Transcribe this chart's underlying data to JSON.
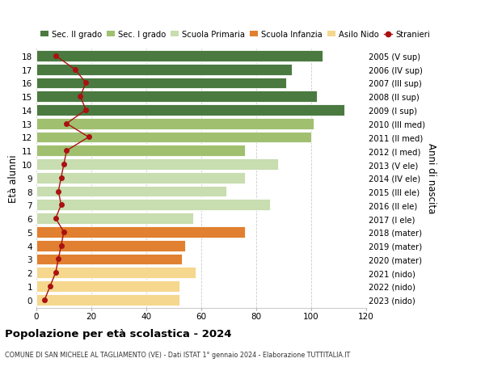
{
  "ages": [
    0,
    1,
    2,
    3,
    4,
    5,
    6,
    7,
    8,
    9,
    10,
    11,
    12,
    13,
    14,
    15,
    16,
    17,
    18
  ],
  "right_labels": [
    "2023 (nido)",
    "2022 (nido)",
    "2021 (nido)",
    "2020 (mater)",
    "2019 (mater)",
    "2018 (mater)",
    "2017 (I ele)",
    "2016 (II ele)",
    "2015 (III ele)",
    "2014 (IV ele)",
    "2013 (V ele)",
    "2012 (I med)",
    "2011 (II med)",
    "2010 (III med)",
    "2009 (I sup)",
    "2008 (II sup)",
    "2007 (III sup)",
    "2006 (IV sup)",
    "2005 (V sup)"
  ],
  "bar_values": [
    52,
    52,
    58,
    53,
    54,
    76,
    57,
    85,
    69,
    76,
    88,
    76,
    100,
    101,
    112,
    102,
    91,
    93,
    104
  ],
  "stranieri": [
    3,
    5,
    7,
    8,
    9,
    10,
    7,
    9,
    8,
    9,
    10,
    11,
    19,
    11,
    18,
    16,
    18,
    14,
    7
  ],
  "bar_colors": [
    "#f5d78e",
    "#f5d78e",
    "#f5d78e",
    "#e08030",
    "#e08030",
    "#e08030",
    "#c8ddb0",
    "#c8ddb0",
    "#c8ddb0",
    "#c8ddb0",
    "#c8ddb0",
    "#a0c070",
    "#a0c070",
    "#a0c070",
    "#4a7a40",
    "#4a7a40",
    "#4a7a40",
    "#4a7a40",
    "#4a7a40"
  ],
  "legend_labels": [
    "Sec. II grado",
    "Sec. I grado",
    "Scuola Primaria",
    "Scuola Infanzia",
    "Asilo Nido",
    "Stranieri"
  ],
  "legend_colors": [
    "#4a7a40",
    "#a0c070",
    "#c8ddb0",
    "#e08030",
    "#f5d78e",
    "#aa1111"
  ],
  "ylabel_left": "Età alunni",
  "ylabel_right": "Anni di nascita",
  "title": "Popolazione per età scolastica - 2024",
  "subtitle": "COMUNE DI SAN MICHELE AL TAGLIAMENTO (VE) - Dati ISTAT 1° gennaio 2024 - Elaborazione TUTTITALIA.IT",
  "xlim": [
    0,
    120
  ],
  "xticks": [
    0,
    20,
    40,
    60,
    80,
    100,
    120
  ],
  "stranieri_color": "#aa1111",
  "bg_color": "#ffffff",
  "bar_height": 0.82
}
